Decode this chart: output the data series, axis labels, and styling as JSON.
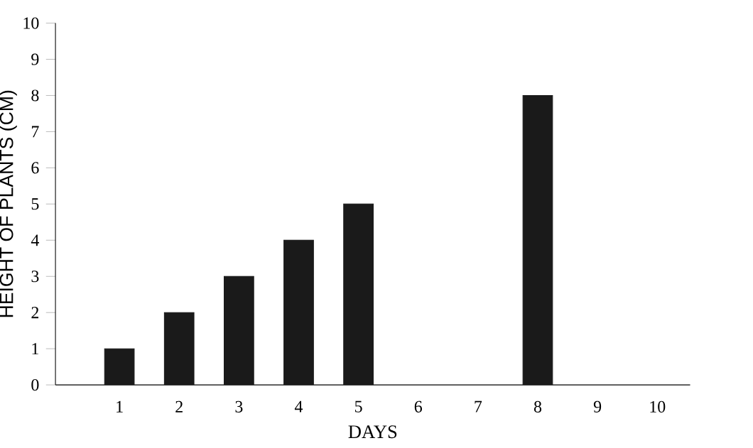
{
  "chart_data": {
    "type": "bar",
    "xlabel": "DAYS",
    "ylabel": "HEIGHT OF PLANTS (CM)",
    "categories": [
      "1",
      "2",
      "3",
      "4",
      "5",
      "6",
      "7",
      "8",
      "9",
      "10"
    ],
    "values": [
      1,
      2,
      3,
      4,
      5,
      null,
      null,
      8,
      null,
      null
    ],
    "color": "#1a1a1a",
    "ylim": [
      0,
      10
    ],
    "yticks": [
      0,
      1,
      2,
      3,
      4,
      5,
      6,
      7,
      8,
      9,
      10
    ],
    "grid": false
  }
}
